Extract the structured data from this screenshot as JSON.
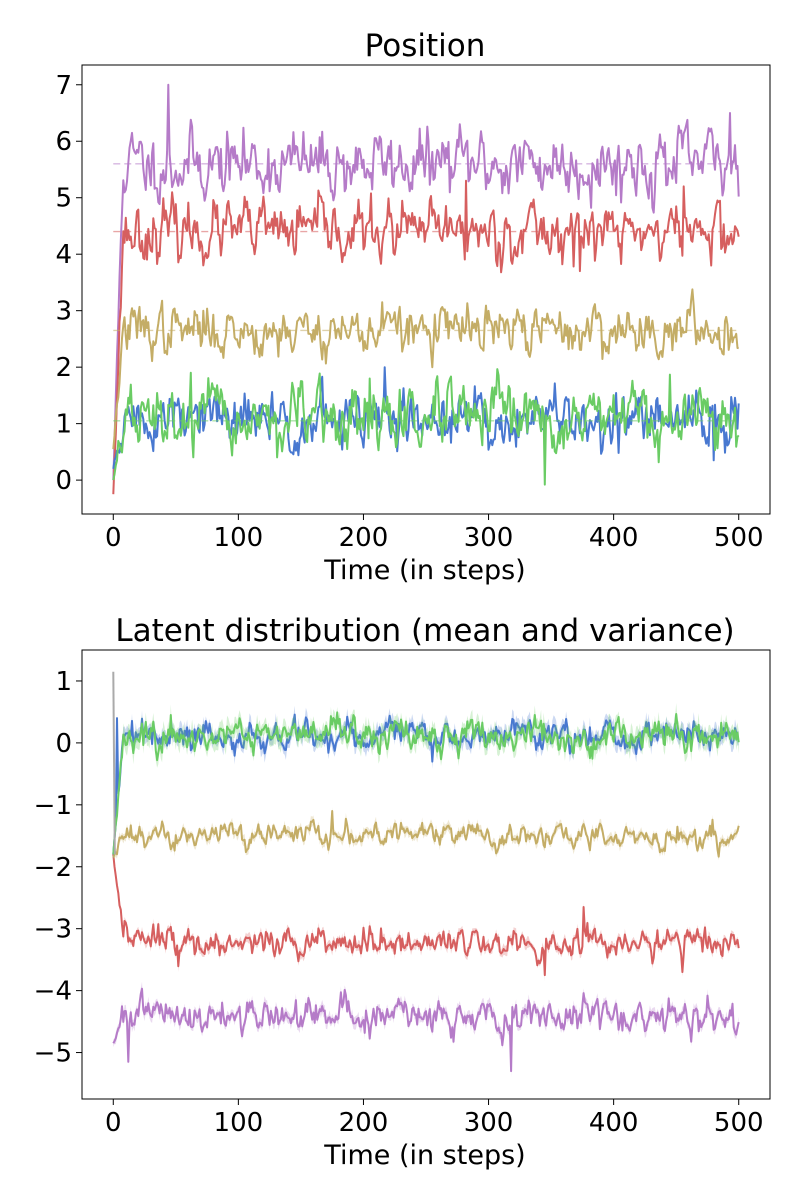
{
  "chart_data": [
    {
      "type": "line",
      "title": "Position",
      "xlabel": "Time (in steps)",
      "ylabel": "",
      "xlim": [
        -25,
        525
      ],
      "ylim": [
        -0.6,
        7.35
      ],
      "xticks": [
        "0",
        "100",
        "200",
        "300",
        "400",
        "500"
      ],
      "yticks": [
        "0",
        "1",
        "2",
        "3",
        "4",
        "5",
        "6",
        "7"
      ],
      "steps": 500,
      "series": [
        {
          "color": "#b57bc8",
          "start": 0.0,
          "target": 5.6,
          "noise": 0.3,
          "seed": 11,
          "show_target": true,
          "peaks": [
            [
              44,
              7.0
            ],
            [
              493,
              6.5
            ]
          ]
        },
        {
          "color": "#d65f5f",
          "start": -0.25,
          "target": 4.4,
          "noise": 0.26,
          "seed": 23,
          "show_target": true,
          "peaks": [
            [
              282,
              5.3
            ],
            [
              456,
              5.2
            ],
            [
              373,
              3.7
            ]
          ]
        },
        {
          "color": "#c4ad66",
          "start": 0.55,
          "target": 2.65,
          "noise": 0.22,
          "seed": 37,
          "show_target": true,
          "peaks": [
            [
              215,
              3.15
            ]
          ]
        },
        {
          "color": "#4878d0",
          "start": 0.2,
          "target": 1.05,
          "noise": 0.26,
          "seed": 51,
          "show_target": false,
          "peaks": [
            [
              217,
              2.0
            ],
            [
              480,
              0.35
            ]
          ]
        },
        {
          "color": "#6acc64",
          "start": 0.0,
          "target": 1.05,
          "noise": 0.28,
          "seed": 67,
          "show_target": true,
          "peaks": [
            [
              345,
              -0.08
            ],
            [
              62,
              1.9
            ],
            [
              205,
              1.8
            ]
          ]
        }
      ]
    },
    {
      "type": "line",
      "title": "Latent distribution (mean and variance)",
      "xlabel": "Time (in steps)",
      "ylabel": "",
      "xlim": [
        -25,
        525
      ],
      "ylim": [
        -5.75,
        1.5
      ],
      "xticks": [
        "0",
        "100",
        "200",
        "300",
        "400",
        "500"
      ],
      "yticks": [
        "1",
        "0",
        "−1",
        "−2",
        "−3",
        "−4",
        "−5"
      ],
      "ytick_values": [
        1,
        0,
        -1,
        -2,
        -3,
        -4,
        -5
      ],
      "steps": 500,
      "series": [
        {
          "color": "#b57bc8",
          "start": -4.85,
          "target": -4.4,
          "noise": 0.14,
          "seed": 101,
          "band": 0.07,
          "peaks": [
            [
              318,
              -5.3
            ],
            [
              12,
              -5.15
            ]
          ]
        },
        {
          "color": "#d65f5f",
          "start": -1.8,
          "target": -3.22,
          "noise": 0.12,
          "seed": 113,
          "band": 0.06,
          "peaks": [
            [
              376,
              -2.65
            ],
            [
              345,
              -3.75
            ],
            [
              455,
              -3.7
            ]
          ]
        },
        {
          "color": "#c4ad66",
          "start": -1.85,
          "target": -1.5,
          "noise": 0.1,
          "seed": 127,
          "band": 0.06,
          "peaks": [
            [
              175,
              -1.1
            ]
          ]
        },
        {
          "color": "#4878d0",
          "start": -1.8,
          "target": 0.12,
          "noise": 0.11,
          "seed": 139,
          "band": 0.1,
          "peaks": [
            [
              3,
              0.4
            ]
          ]
        },
        {
          "color": "#6acc64",
          "start": -1.8,
          "target": 0.1,
          "noise": 0.12,
          "seed": 151,
          "band": 0.12,
          "peaks": [
            [
              46,
              0.45
            ]
          ]
        },
        {
          "color": "#aaaaaa",
          "start": 1.15,
          "target": -1.8,
          "noise": 0.0,
          "seed": 163,
          "band": 0.0,
          "spike_only": true
        }
      ]
    }
  ]
}
